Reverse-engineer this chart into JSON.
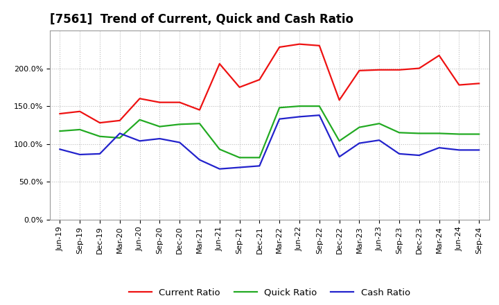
{
  "title": "[7561]  Trend of Current, Quick and Cash Ratio",
  "labels": [
    "Jun-19",
    "Sep-19",
    "Dec-19",
    "Mar-20",
    "Jun-20",
    "Sep-20",
    "Dec-20",
    "Mar-21",
    "Jun-21",
    "Sep-21",
    "Dec-21",
    "Mar-22",
    "Jun-22",
    "Sep-22",
    "Dec-22",
    "Mar-23",
    "Jun-23",
    "Sep-23",
    "Dec-23",
    "Mar-24",
    "Jun-24",
    "Sep-24"
  ],
  "current_ratio": [
    1.4,
    1.43,
    1.28,
    1.31,
    1.6,
    1.55,
    1.55,
    1.45,
    2.06,
    1.75,
    1.85,
    2.28,
    2.32,
    2.3,
    1.58,
    1.97,
    1.98,
    1.98,
    2.0,
    2.17,
    1.78,
    1.8
  ],
  "quick_ratio": [
    1.17,
    1.19,
    1.1,
    1.08,
    1.32,
    1.23,
    1.26,
    1.27,
    0.93,
    0.82,
    0.82,
    1.48,
    1.5,
    1.5,
    1.04,
    1.22,
    1.27,
    1.15,
    1.14,
    1.14,
    1.13,
    1.13
  ],
  "cash_ratio": [
    0.93,
    0.86,
    0.87,
    1.14,
    1.04,
    1.07,
    1.02,
    0.79,
    0.67,
    0.69,
    0.71,
    1.33,
    1.36,
    1.38,
    0.83,
    1.01,
    1.05,
    0.87,
    0.85,
    0.95,
    0.92,
    0.92
  ],
  "current_color": "#EE1111",
  "quick_color": "#22AA22",
  "cash_color": "#2222CC",
  "ylim": [
    0.0,
    2.5
  ],
  "yticks": [
    0.0,
    0.5,
    1.0,
    1.5,
    2.0
  ],
  "ytick_labels": [
    "0.0%",
    "50.0%",
    "100.0%",
    "150.0%",
    "200.0%"
  ],
  "background_color": "#FFFFFF",
  "plot_bg_color": "#FFFFFF",
  "grid_color": "#BBBBBB",
  "line_width": 1.6,
  "legend_labels": [
    "Current Ratio",
    "Quick Ratio",
    "Cash Ratio"
  ],
  "title_fontsize": 12,
  "tick_fontsize": 8,
  "legend_fontsize": 9.5
}
